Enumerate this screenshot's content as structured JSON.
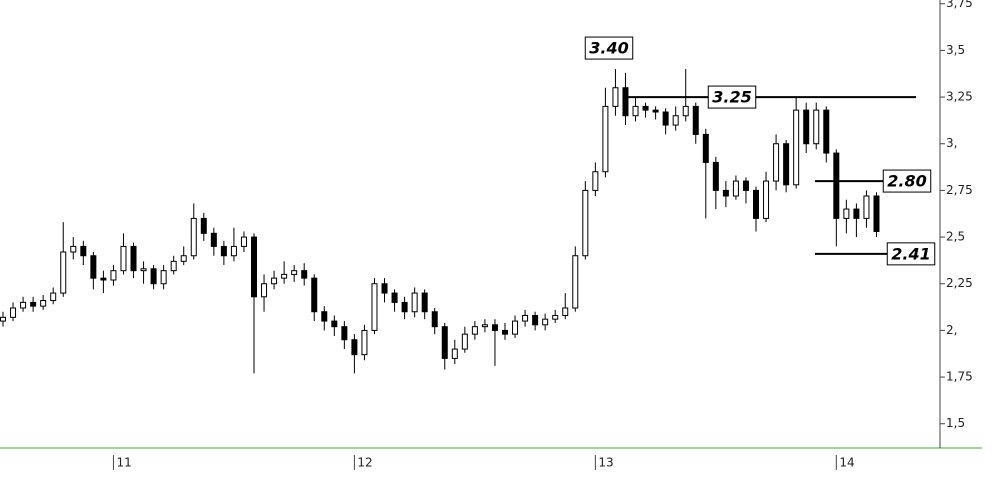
{
  "chart_data": {
    "type": "candlestick",
    "categories": [
      null,
      null,
      null,
      null,
      null,
      null,
      null,
      null,
      null,
      null,
      null,
      "11",
      null,
      null,
      null,
      null,
      null,
      null,
      null,
      null,
      null,
      null,
      null,
      null,
      null,
      null,
      null,
      null,
      null,
      null,
      null,
      null,
      null,
      null,
      null,
      "12",
      null,
      null,
      null,
      null,
      null,
      null,
      null,
      null,
      null,
      null,
      null,
      null,
      null,
      null,
      null,
      null,
      null,
      null,
      null,
      null,
      null,
      null,
      null,
      "13",
      null,
      null,
      null,
      null,
      null,
      null,
      null,
      null,
      null,
      null,
      null,
      null,
      null,
      null,
      null,
      null,
      null,
      null,
      null,
      null,
      null,
      null,
      null,
      "14",
      null,
      null,
      null,
      null
    ],
    "open": [
      2.05,
      2.07,
      2.12,
      2.15,
      2.13,
      2.16,
      2.2,
      2.42,
      2.45,
      2.4,
      2.28,
      2.27,
      2.32,
      2.45,
      2.32,
      2.33,
      2.25,
      2.32,
      2.37,
      2.4,
      2.6,
      2.52,
      2.45,
      2.4,
      2.45,
      2.5,
      2.18,
      2.25,
      2.28,
      2.3,
      2.32,
      2.28,
      2.1,
      2.05,
      2.02,
      1.95,
      1.87,
      2.0,
      2.25,
      2.2,
      2.15,
      2.1,
      2.2,
      2.1,
      2.02,
      1.85,
      1.9,
      1.98,
      2.02,
      2.03,
      2.0,
      1.98,
      2.05,
      2.08,
      2.03,
      2.06,
      2.08,
      2.12,
      2.4,
      2.75,
      2.85,
      3.2,
      3.3,
      3.15,
      3.2,
      3.18,
      3.17,
      3.1,
      3.15,
      3.2,
      3.05,
      2.9,
      2.75,
      2.72,
      2.8,
      2.75,
      2.6,
      2.8,
      3.0,
      2.78,
      3.18,
      3.0,
      3.18,
      2.95,
      2.6,
      2.65,
      2.6,
      2.72
    ],
    "high": [
      2.1,
      2.15,
      2.18,
      2.18,
      2.19,
      2.23,
      2.58,
      2.5,
      2.48,
      2.42,
      2.32,
      2.35,
      2.52,
      2.47,
      2.37,
      2.35,
      2.35,
      2.4,
      2.45,
      2.68,
      2.63,
      2.55,
      2.48,
      2.55,
      2.53,
      2.52,
      2.3,
      2.32,
      2.37,
      2.35,
      2.36,
      2.3,
      2.13,
      2.08,
      2.05,
      1.98,
      2.03,
      2.28,
      2.28,
      2.22,
      2.18,
      2.23,
      2.22,
      2.12,
      2.04,
      1.95,
      2.02,
      2.05,
      2.06,
      2.06,
      2.04,
      2.08,
      2.11,
      2.1,
      2.09,
      2.11,
      2.2,
      2.45,
      2.8,
      2.9,
      3.3,
      3.4,
      3.38,
      3.25,
      3.22,
      3.2,
      3.19,
      3.2,
      3.4,
      3.22,
      3.08,
      2.93,
      2.8,
      2.83,
      2.82,
      2.77,
      2.85,
      3.05,
      3.02,
      3.25,
      3.22,
      3.22,
      3.2,
      2.97,
      2.7,
      2.68,
      2.75,
      2.74
    ],
    "low": [
      2.02,
      2.05,
      2.1,
      2.1,
      2.11,
      2.14,
      2.18,
      2.38,
      2.35,
      2.22,
      2.2,
      2.24,
      2.3,
      2.28,
      2.25,
      2.22,
      2.22,
      2.3,
      2.35,
      2.38,
      2.48,
      2.4,
      2.35,
      2.37,
      2.42,
      1.77,
      2.1,
      2.22,
      2.25,
      2.26,
      2.24,
      2.05,
      2.0,
      1.97,
      1.9,
      1.77,
      1.84,
      1.98,
      2.15,
      2.1,
      2.06,
      2.07,
      2.06,
      1.98,
      1.79,
      1.82,
      1.88,
      1.95,
      1.99,
      1.81,
      1.95,
      1.96,
      2.02,
      2.0,
      2.0,
      2.04,
      2.06,
      2.1,
      2.38,
      2.72,
      2.82,
      3.15,
      3.1,
      3.12,
      3.14,
      3.13,
      3.05,
      3.07,
      3.12,
      3.0,
      2.6,
      2.65,
      2.66,
      2.7,
      2.68,
      2.53,
      2.58,
      2.75,
      2.74,
      2.76,
      2.95,
      2.97,
      2.9,
      2.45,
      2.52,
      2.5,
      2.55,
      2.5
    ],
    "close": [
      2.07,
      2.12,
      2.15,
      2.13,
      2.16,
      2.2,
      2.42,
      2.45,
      2.4,
      2.28,
      2.27,
      2.32,
      2.45,
      2.32,
      2.33,
      2.25,
      2.32,
      2.37,
      2.4,
      2.6,
      2.52,
      2.45,
      2.4,
      2.45,
      2.5,
      2.18,
      2.25,
      2.28,
      2.3,
      2.32,
      2.28,
      2.1,
      2.05,
      2.02,
      1.95,
      1.87,
      2.0,
      2.25,
      2.2,
      2.15,
      2.1,
      2.2,
      2.1,
      2.02,
      1.85,
      1.9,
      1.98,
      2.02,
      2.03,
      2.0,
      1.98,
      2.05,
      2.08,
      2.03,
      2.06,
      2.08,
      2.12,
      2.4,
      2.75,
      2.85,
      3.2,
      3.3,
      3.15,
      3.2,
      3.18,
      3.17,
      3.1,
      3.15,
      3.2,
      3.05,
      2.9,
      2.75,
      2.72,
      2.8,
      2.75,
      2.6,
      2.8,
      3.0,
      2.78,
      3.18,
      3.0,
      3.18,
      2.95,
      2.6,
      2.65,
      2.6,
      2.72,
      2.53
    ],
    "up_color": "#ffffff",
    "down_color": "#000000",
    "ylim": [
      1.37,
      3.77
    ],
    "yticks": [
      {
        "value": 1.5,
        "label": "1,5"
      },
      {
        "value": 1.75,
        "label": "1,75"
      },
      {
        "value": 2,
        "label": "2,"
      },
      {
        "value": 2.25,
        "label": "2,25"
      },
      {
        "value": 2.5,
        "label": "2,5"
      },
      {
        "value": 2.75,
        "label": "2,75"
      },
      {
        "value": 3,
        "label": "3,"
      },
      {
        "value": 3.25,
        "label": "3,25"
      },
      {
        "value": 3.5,
        "label": "3,5"
      },
      {
        "value": 3.75,
        "label": "3,75"
      }
    ],
    "annotations": [
      {
        "label": "3.40",
        "value": 3.4
      },
      {
        "label": "3.25",
        "value": 3.25
      },
      {
        "label": "2.80",
        "value": 2.8
      },
      {
        "label": "2.41",
        "value": 2.41
      }
    ]
  }
}
